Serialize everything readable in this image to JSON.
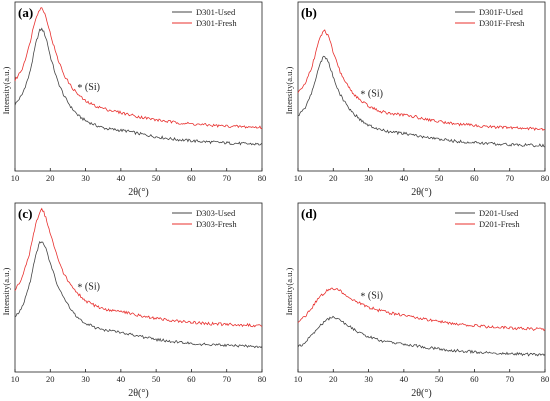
{
  "chart_data": [
    {
      "type": "line",
      "panel": "(a)",
      "xlabel": "2θ(°)",
      "ylabel": "Intensity(a.u.)",
      "xlim": [
        10,
        80
      ],
      "xticks": [
        10,
        20,
        30,
        40,
        50,
        60,
        70,
        80
      ],
      "legend_position": "top-right",
      "annotation": {
        "text": "(Si)",
        "marker": "*",
        "x": 28.4,
        "series": "D301-Fresh"
      },
      "series": [
        {
          "name": "D301-Used",
          "color": "#444444",
          "x": [
            10,
            12,
            14,
            15,
            16,
            17,
            17.5,
            18,
            19,
            20,
            22,
            24,
            26,
            28,
            30,
            33,
            36,
            40,
            42,
            45,
            50,
            55,
            60,
            65,
            70,
            75,
            80
          ],
          "y": [
            0.4,
            0.46,
            0.58,
            0.68,
            0.79,
            0.86,
            0.87,
            0.86,
            0.8,
            0.7,
            0.55,
            0.45,
            0.38,
            0.33,
            0.3,
            0.27,
            0.25,
            0.24,
            0.235,
            0.22,
            0.2,
            0.185,
            0.175,
            0.168,
            0.162,
            0.157,
            0.153
          ]
        },
        {
          "name": "D301-Fresh",
          "color": "#e8302e",
          "x": [
            10,
            12,
            14,
            15,
            16,
            17,
            17.5,
            18,
            19,
            20,
            22,
            24,
            26,
            28,
            30,
            33,
            36,
            40,
            42,
            45,
            50,
            55,
            60,
            65,
            70,
            75,
            80
          ],
          "y": [
            0.55,
            0.62,
            0.76,
            0.86,
            0.95,
            0.99,
            1.0,
            0.99,
            0.93,
            0.84,
            0.69,
            0.58,
            0.51,
            0.46,
            0.42,
            0.39,
            0.37,
            0.35,
            0.34,
            0.325,
            0.305,
            0.29,
            0.28,
            0.272,
            0.266,
            0.262,
            0.258
          ]
        }
      ]
    },
    {
      "type": "line",
      "panel": "(b)",
      "xlabel": "2θ(°)",
      "ylabel": "Intensity(a.u.)",
      "xlim": [
        10,
        80
      ],
      "xticks": [
        10,
        20,
        30,
        40,
        50,
        60,
        70,
        80
      ],
      "legend_position": "top-right",
      "annotation": {
        "text": "(Si)",
        "marker": "*",
        "x": 28.4,
        "series": "D301F-Fresh"
      },
      "series": [
        {
          "name": "D301F-Used",
          "color": "#444444",
          "x": [
            10,
            12,
            14,
            15,
            16,
            17,
            17.5,
            18,
            19,
            20,
            22,
            24,
            26,
            28,
            30,
            33,
            36,
            40,
            42,
            45,
            50,
            55,
            60,
            65,
            70,
            75,
            80
          ],
          "y": [
            0.33,
            0.38,
            0.48,
            0.56,
            0.64,
            0.69,
            0.7,
            0.69,
            0.64,
            0.57,
            0.46,
            0.39,
            0.34,
            0.3,
            0.27,
            0.245,
            0.23,
            0.22,
            0.215,
            0.2,
            0.185,
            0.172,
            0.163,
            0.157,
            0.152,
            0.148,
            0.145
          ]
        },
        {
          "name": "D301F-Fresh",
          "color": "#e8302e",
          "x": [
            10,
            12,
            14,
            15,
            16,
            17,
            17.5,
            18,
            19,
            20,
            22,
            24,
            26,
            28,
            30,
            33,
            36,
            40,
            42,
            45,
            50,
            55,
            60,
            65,
            70,
            75,
            80
          ],
          "y": [
            0.47,
            0.53,
            0.64,
            0.72,
            0.8,
            0.85,
            0.86,
            0.85,
            0.8,
            0.72,
            0.6,
            0.52,
            0.46,
            0.42,
            0.39,
            0.36,
            0.345,
            0.335,
            0.33,
            0.315,
            0.295,
            0.28,
            0.27,
            0.262,
            0.256,
            0.252,
            0.248
          ]
        }
      ]
    },
    {
      "type": "line",
      "panel": "(c)",
      "xlabel": "2θ(°)",
      "ylabel": "Intensity(a.u.)",
      "xlim": [
        10,
        80
      ],
      "xticks": [
        10,
        20,
        30,
        40,
        50,
        60,
        70,
        80
      ],
      "legend_position": "top-right",
      "annotation": {
        "text": "(Si)",
        "marker": "*",
        "x": 28.4,
        "series": "D303-Fresh"
      },
      "series": [
        {
          "name": "D303-Used",
          "color": "#444444",
          "x": [
            10,
            12,
            14,
            15,
            16,
            17,
            17.5,
            18,
            19,
            20,
            22,
            24,
            26,
            28,
            30,
            33,
            36,
            40,
            42,
            45,
            50,
            55,
            60,
            65,
            70,
            75,
            80
          ],
          "y": [
            0.33,
            0.39,
            0.52,
            0.62,
            0.72,
            0.79,
            0.8,
            0.79,
            0.74,
            0.66,
            0.53,
            0.44,
            0.37,
            0.32,
            0.29,
            0.26,
            0.245,
            0.235,
            0.225,
            0.21,
            0.19,
            0.175,
            0.165,
            0.158,
            0.152,
            0.148,
            0.145
          ]
        },
        {
          "name": "D303-Fresh",
          "color": "#e8302e",
          "x": [
            10,
            12,
            14,
            15,
            16,
            17,
            17.5,
            18,
            19,
            20,
            22,
            24,
            26,
            28,
            30,
            33,
            36,
            40,
            42,
            45,
            50,
            55,
            60,
            65,
            70,
            75,
            80
          ],
          "y": [
            0.5,
            0.57,
            0.71,
            0.82,
            0.92,
            0.98,
            1.0,
            0.99,
            0.93,
            0.85,
            0.7,
            0.59,
            0.52,
            0.47,
            0.43,
            0.395,
            0.375,
            0.365,
            0.355,
            0.34,
            0.32,
            0.305,
            0.295,
            0.288,
            0.283,
            0.279,
            0.276
          ]
        }
      ]
    },
    {
      "type": "line",
      "panel": "(d)",
      "xlabel": "2θ(°)",
      "ylabel": "Intensity(a.u.)",
      "xlim": [
        10,
        80
      ],
      "xticks": [
        10,
        20,
        30,
        40,
        50,
        60,
        70,
        80
      ],
      "legend_position": "top-right",
      "annotation": {
        "text": "(Si)",
        "marker": "*",
        "x": 28.4,
        "series": "D201-Fresh"
      },
      "series": [
        {
          "name": "D201-Used",
          "color": "#444444",
          "x": [
            10,
            12,
            14,
            16,
            18,
            19,
            20,
            21,
            22,
            24,
            26,
            28,
            30,
            33,
            36,
            40,
            42,
            45,
            50,
            55,
            60,
            65,
            70,
            75,
            80
          ],
          "y": [
            0.14,
            0.17,
            0.22,
            0.27,
            0.31,
            0.32,
            0.325,
            0.32,
            0.31,
            0.28,
            0.25,
            0.225,
            0.205,
            0.185,
            0.17,
            0.16,
            0.155,
            0.145,
            0.13,
            0.12,
            0.112,
            0.106,
            0.101,
            0.097,
            0.094
          ]
        },
        {
          "name": "D201-Fresh",
          "color": "#e8302e",
          "x": [
            10,
            12,
            14,
            16,
            18,
            19,
            20,
            21,
            22,
            24,
            26,
            28,
            30,
            33,
            36,
            40,
            42,
            45,
            50,
            55,
            60,
            65,
            70,
            75,
            80
          ],
          "y": [
            0.3,
            0.33,
            0.39,
            0.45,
            0.49,
            0.5,
            0.505,
            0.5,
            0.49,
            0.46,
            0.43,
            0.41,
            0.39,
            0.37,
            0.355,
            0.34,
            0.335,
            0.32,
            0.3,
            0.285,
            0.275,
            0.267,
            0.261,
            0.256,
            0.252
          ]
        }
      ]
    }
  ]
}
